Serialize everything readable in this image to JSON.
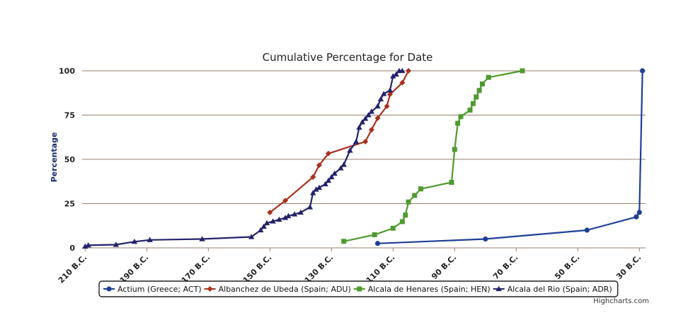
{
  "chart_data": {
    "type": "line",
    "title": "Cumulative Percentage for Date",
    "ylabel": "Percentage",
    "xlabel": "",
    "xlim": [
      -211,
      -28
    ],
    "ylim": [
      0,
      100
    ],
    "x_ticks": [
      -210,
      -190,
      -170,
      -150,
      -130,
      -110,
      -90,
      -70,
      -50,
      -30
    ],
    "x_tick_labels": [
      "210 B.C.",
      "190 B.C.",
      "170 B.C.",
      "150 B.C.",
      "130 B.C.",
      "110 B.C.",
      "90 B.C.",
      "70 B.C.",
      "50 B.C.",
      "30 B.C."
    ],
    "y_ticks": [
      0,
      25,
      50,
      75,
      100
    ],
    "y_tick_labels": [
      "0",
      "25",
      "50",
      "75",
      "100"
    ],
    "grid": true,
    "legend_position": "bottom-center",
    "credits": "Highcharts.com",
    "series": [
      {
        "name": "Actium (Greece; ACT)",
        "color": "#1f3f96",
        "marker": "circle",
        "points": [
          [
            -115,
            2.5
          ],
          [
            -80,
            5
          ],
          [
            -47,
            10
          ],
          [
            -31,
            17.5
          ],
          [
            -30,
            20
          ],
          [
            -29,
            100
          ]
        ]
      },
      {
        "name": "Albanchez de Ubeda (Spain; ADU)",
        "color": "#a8321e",
        "marker": "diamond",
        "points": [
          [
            -150,
            20
          ],
          [
            -145,
            26.7
          ],
          [
            -136,
            40
          ],
          [
            -134,
            46.7
          ],
          [
            -131,
            53.3
          ],
          [
            -119,
            60
          ],
          [
            -117,
            66.7
          ],
          [
            -115,
            73.3
          ],
          [
            -112,
            80
          ],
          [
            -111,
            86.7
          ],
          [
            -107,
            93.3
          ],
          [
            -105,
            100
          ]
        ]
      },
      {
        "name": "Alcala de Henares (Spain; HEN)",
        "color": "#4f9a2e",
        "marker": "square",
        "points": [
          [
            -126,
            3.7
          ],
          [
            -116,
            7.4
          ],
          [
            -110,
            11.1
          ],
          [
            -107,
            14.8
          ],
          [
            -106,
            18.5
          ],
          [
            -105,
            25.9
          ],
          [
            -103,
            29.6
          ],
          [
            -101,
            33.3
          ],
          [
            -91,
            37
          ],
          [
            -90,
            55.6
          ],
          [
            -89,
            70.4
          ],
          [
            -88,
            74.1
          ],
          [
            -85,
            77.8
          ],
          [
            -84,
            81.5
          ],
          [
            -83,
            85.2
          ],
          [
            -82,
            88.9
          ],
          [
            -81,
            92.6
          ],
          [
            -79,
            96.3
          ],
          [
            -68,
            100
          ]
        ]
      },
      {
        "name": "Alcala del Rio (Spain; ADR)",
        "color": "#23236b",
        "marker": "triangle",
        "points": [
          [
            -210,
            0.8
          ],
          [
            -209,
            1.5
          ],
          [
            -200,
            1.8
          ],
          [
            -194,
            3.5
          ],
          [
            -189,
            4.5
          ],
          [
            -172,
            5
          ],
          [
            -156,
            6.2
          ],
          [
            -153,
            10
          ],
          [
            -152,
            12
          ],
          [
            -151,
            14
          ],
          [
            -149,
            15
          ],
          [
            -147,
            16
          ],
          [
            -145,
            17
          ],
          [
            -144,
            18
          ],
          [
            -142,
            19
          ],
          [
            -140,
            20
          ],
          [
            -137,
            23
          ],
          [
            -136,
            31
          ],
          [
            -135,
            33
          ],
          [
            -134,
            34
          ],
          [
            -132,
            36
          ],
          [
            -131,
            38
          ],
          [
            -130,
            40
          ],
          [
            -129,
            42
          ],
          [
            -127,
            45
          ],
          [
            -126,
            47
          ],
          [
            -124,
            55
          ],
          [
            -122,
            60
          ],
          [
            -121,
            68
          ],
          [
            -120,
            71
          ],
          [
            -119,
            73
          ],
          [
            -118,
            75
          ],
          [
            -117,
            77
          ],
          [
            -115,
            80
          ],
          [
            -114,
            84
          ],
          [
            -113,
            87
          ],
          [
            -111,
            89
          ],
          [
            -110,
            97
          ],
          [
            -109,
            98
          ],
          [
            -108,
            100
          ],
          [
            -107,
            100
          ]
        ]
      }
    ]
  }
}
